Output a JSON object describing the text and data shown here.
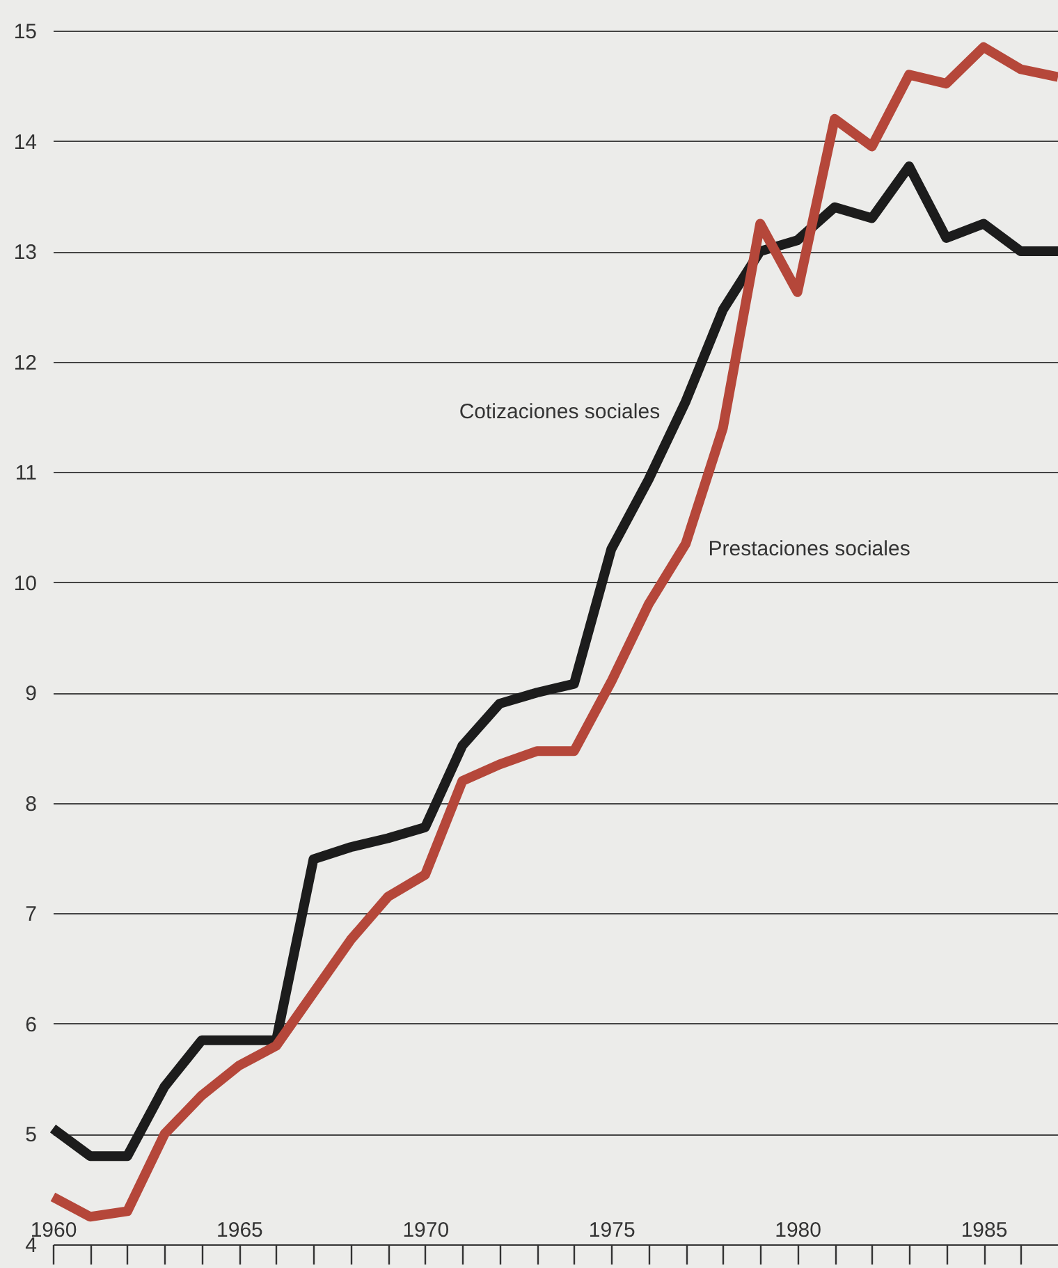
{
  "chart_data": {
    "type": "line",
    "x": [
      1960,
      1961,
      1962,
      1963,
      1964,
      1965,
      1966,
      1967,
      1968,
      1969,
      1970,
      1971,
      1972,
      1973,
      1974,
      1975,
      1976,
      1977,
      1978,
      1979,
      1980,
      1981,
      1982,
      1983,
      1984,
      1985,
      1986,
      1987
    ],
    "series": [
      {
        "name": "Cotizaciones sociales",
        "color": "#1c1c1c",
        "values": [
          5.05,
          4.8,
          4.8,
          5.43,
          5.85,
          5.85,
          5.85,
          7.49,
          7.6,
          7.68,
          7.78,
          8.52,
          8.9,
          9.0,
          9.08,
          10.3,
          10.93,
          11.64,
          12.47,
          13.0,
          13.1,
          13.4,
          13.3,
          13.77,
          13.12,
          13.25,
          13.0,
          13.0
        ]
      },
      {
        "name": "Prestaciones sociales",
        "color": "#b5473a",
        "values": [
          4.43,
          4.25,
          4.3,
          5.0,
          5.35,
          5.62,
          5.8,
          6.28,
          6.76,
          7.15,
          7.35,
          8.2,
          8.35,
          8.47,
          8.47,
          9.1,
          9.8,
          10.35,
          11.4,
          13.25,
          12.63,
          14.2,
          13.95,
          14.6,
          14.52,
          14.85,
          14.65,
          14.58
        ]
      }
    ],
    "xlim": [
      1960,
      1987
    ],
    "xticks": [
      {
        "value": 1960,
        "label": "1960"
      },
      {
        "value": 1961,
        "label": null
      },
      {
        "value": 1962,
        "label": null
      },
      {
        "value": 1963,
        "label": null
      },
      {
        "value": 1964,
        "label": null
      },
      {
        "value": 1965,
        "label": "1965"
      },
      {
        "value": 1966,
        "label": null
      },
      {
        "value": 1967,
        "label": null
      },
      {
        "value": 1968,
        "label": null
      },
      {
        "value": 1969,
        "label": null
      },
      {
        "value": 1970,
        "label": "1970"
      },
      {
        "value": 1971,
        "label": null
      },
      {
        "value": 1972,
        "label": null
      },
      {
        "value": 1973,
        "label": null
      },
      {
        "value": 1974,
        "label": null
      },
      {
        "value": 1975,
        "label": "1975"
      },
      {
        "value": 1976,
        "label": null
      },
      {
        "value": 1977,
        "label": null
      },
      {
        "value": 1978,
        "label": null
      },
      {
        "value": 1979,
        "label": null
      },
      {
        "value": 1980,
        "label": "1980"
      },
      {
        "value": 1981,
        "label": null
      },
      {
        "value": 1982,
        "label": null
      },
      {
        "value": 1983,
        "label": null
      },
      {
        "value": 1984,
        "label": null
      },
      {
        "value": 1985,
        "label": "1985"
      },
      {
        "value": 1986,
        "label": null
      }
    ],
    "ylim": [
      4,
      15
    ],
    "yticks": [
      4,
      5,
      6,
      7,
      8,
      9,
      10,
      11,
      12,
      13,
      14,
      15
    ],
    "grid": "y",
    "legend": false,
    "marker": "none",
    "line_style": "solid"
  }
}
